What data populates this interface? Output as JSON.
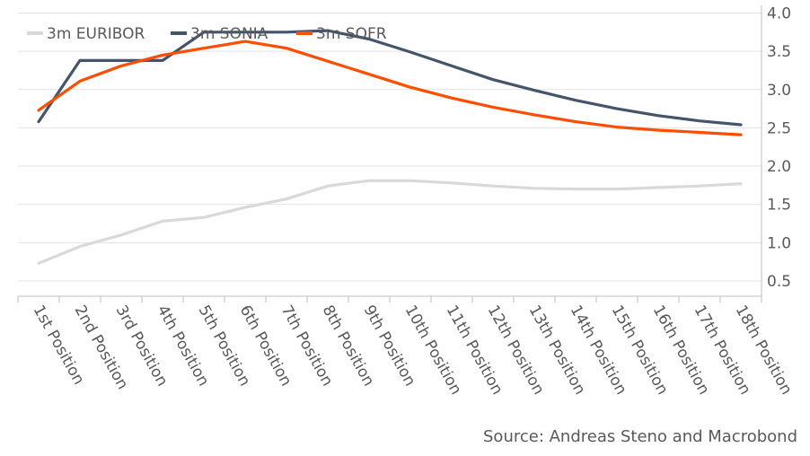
{
  "chart_data": {
    "type": "line",
    "categories": [
      "1st Position",
      "2nd Position",
      "3rd Position",
      "4th Position",
      "5th Position",
      "6th Position",
      "7th Position",
      "8th Position",
      "9th Position",
      "10th Position",
      "11th Position",
      "12th Position",
      "13th Position",
      "14th Position",
      "15th Position",
      "16th Position",
      "17th Position",
      "18th Position"
    ],
    "series": [
      {
        "name": "3m EURIBOR",
        "color": "#d9d9d9",
        "values": [
          0.73,
          0.95,
          1.1,
          1.28,
          1.33,
          1.46,
          1.57,
          1.74,
          1.81,
          1.81,
          1.78,
          1.74,
          1.71,
          1.7,
          1.7,
          1.72,
          1.74,
          1.77
        ]
      },
      {
        "name": "3m SONIA",
        "color": "#44546a",
        "values": [
          2.58,
          3.38,
          3.38,
          3.38,
          3.75,
          3.75,
          3.75,
          3.77,
          3.66,
          3.49,
          3.31,
          3.13,
          2.99,
          2.86,
          2.75,
          2.66,
          2.59,
          2.54
        ]
      },
      {
        "name": "3m SOFR",
        "color": "#ff4e00",
        "values": [
          2.73,
          3.11,
          3.31,
          3.45,
          3.54,
          3.63,
          3.54,
          3.37,
          3.2,
          3.03,
          2.89,
          2.77,
          2.67,
          2.58,
          2.51,
          2.47,
          2.44,
          2.41
        ]
      }
    ],
    "y_axis": {
      "position": "right",
      "ylim": [
        0.3,
        4.1
      ],
      "ticks": [
        "0.5",
        "1.0",
        "1.5",
        "2.0",
        "2.5",
        "3.0",
        "3.5",
        "4.0"
      ]
    },
    "grid": true,
    "legend": "top-left"
  },
  "source": "Source: Andreas Steno and Macrobond"
}
